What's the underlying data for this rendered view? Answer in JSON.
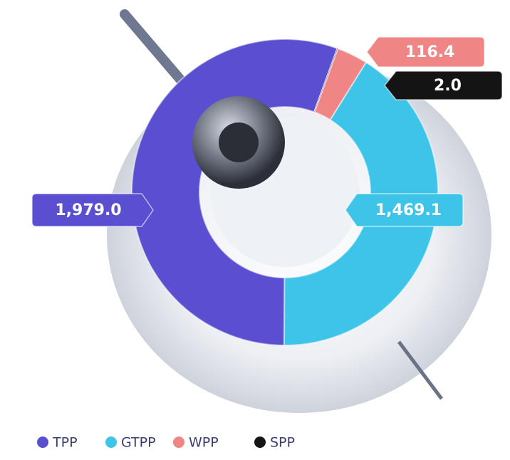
{
  "chart_data": {
    "type": "pie",
    "categories": [
      "TPP",
      "GTPP",
      "WPP",
      "SPP"
    ],
    "values": [
      1979.0,
      1469.1,
      116.4,
      2.0
    ],
    "value_labels": [
      "1,979.0",
      "1,469.1",
      "116.4",
      "2.0"
    ],
    "colors": [
      "#5a4fd0",
      "#3ec4e8",
      "#ef8585",
      "#141414"
    ],
    "legend": "bottom"
  }
}
